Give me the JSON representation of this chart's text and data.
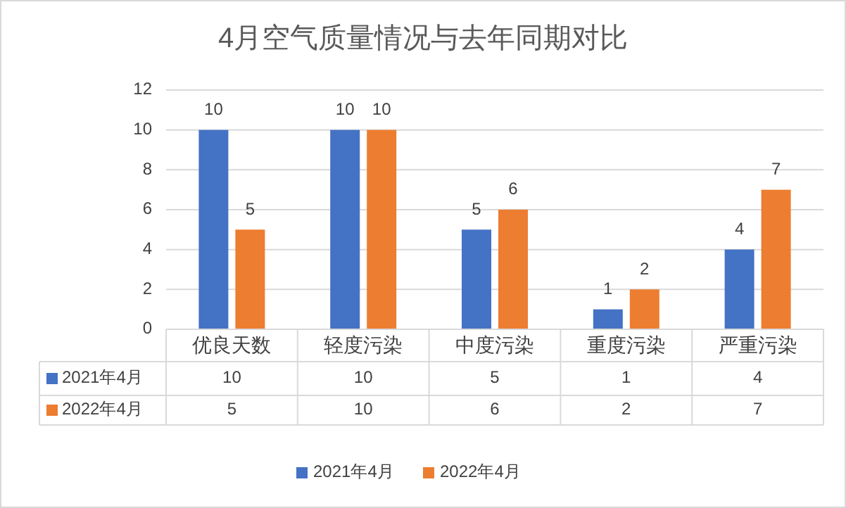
{
  "chart_data": {
    "type": "bar",
    "title": "4月空气质量情况与去年同期对比",
    "categories": [
      "优良天数",
      "轻度污染",
      "中度污染",
      "重度污染",
      "严重污染"
    ],
    "series": [
      {
        "name": "2021年4月",
        "color": "#4472c4",
        "values": [
          10,
          10,
          5,
          1,
          4
        ]
      },
      {
        "name": "2022年4月",
        "color": "#ed7d31",
        "values": [
          5,
          10,
          6,
          2,
          7
        ]
      }
    ],
    "annotations": [
      "10",
      "10",
      "5",
      "1",
      "4",
      "5",
      "10",
      "6",
      "2",
      "7"
    ],
    "ylim": [
      0,
      12
    ],
    "yticks": [
      0,
      2,
      4,
      6,
      8,
      10,
      12
    ],
    "grid": "y",
    "data_labels": true,
    "legend": "bottom"
  }
}
